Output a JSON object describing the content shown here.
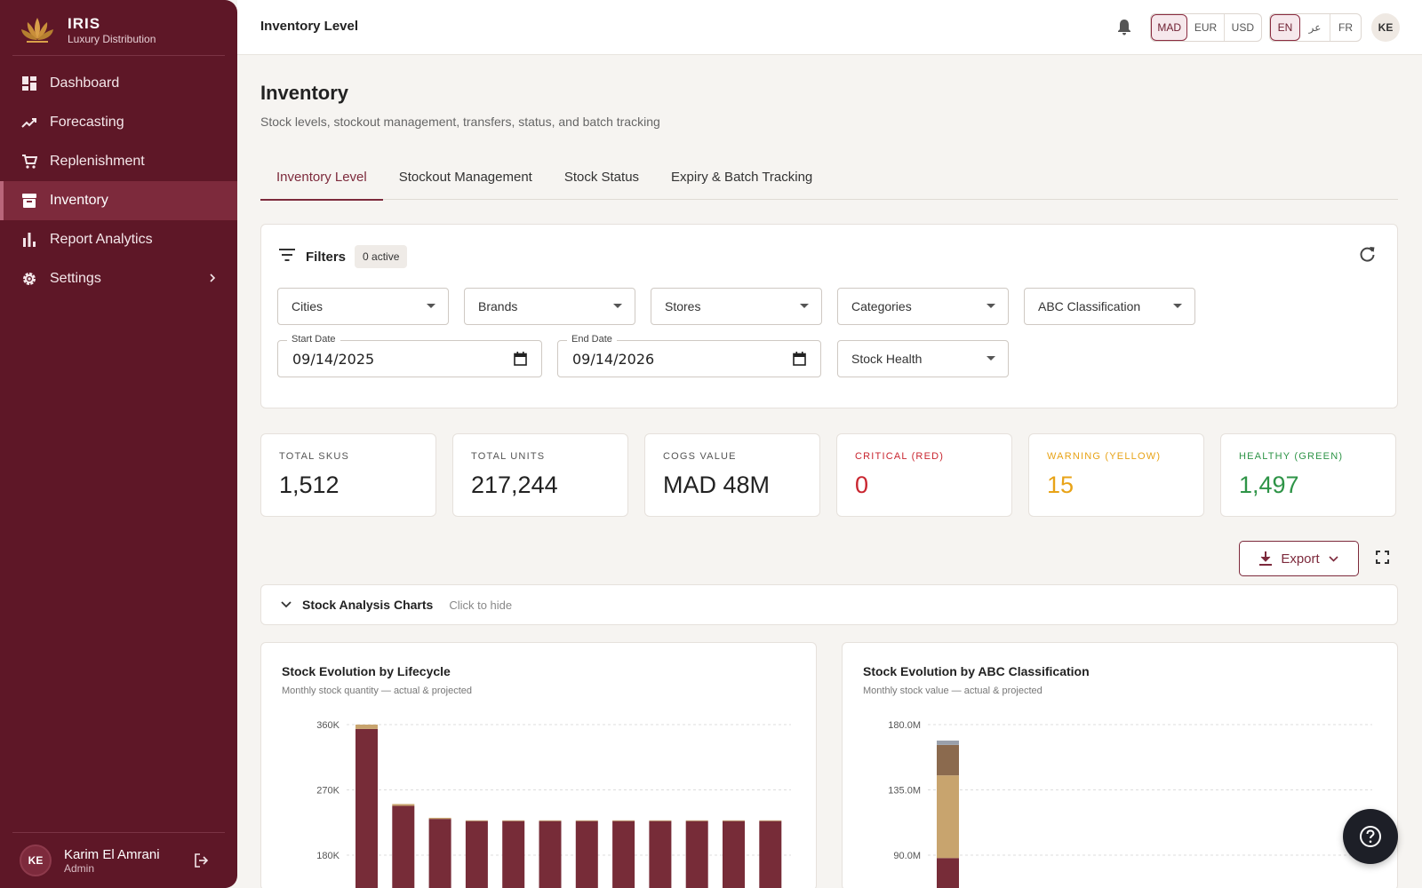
{
  "brand": {
    "name": "IRIS",
    "subtitle": "Luxury Distribution",
    "logo": "lotus-logo"
  },
  "sidebar": {
    "items": [
      {
        "label": "Dashboard",
        "icon": "dashboard-icon",
        "active": false
      },
      {
        "label": "Forecasting",
        "icon": "trending-up-icon",
        "active": false
      },
      {
        "label": "Replenishment",
        "icon": "cart-icon",
        "active": false
      },
      {
        "label": "Inventory",
        "icon": "archive-icon",
        "active": true
      },
      {
        "label": "Report Analytics",
        "icon": "bar-chart-icon",
        "active": false
      },
      {
        "label": "Settings",
        "icon": "gear-icon",
        "active": false,
        "has_submenu": true
      }
    ],
    "user": {
      "initials": "KE",
      "name": "Karim El Amrani",
      "role": "Admin"
    }
  },
  "topbar": {
    "title": "Inventory Level",
    "currencies": [
      "MAD",
      "EUR",
      "USD"
    ],
    "selected_currency": "MAD",
    "languages": [
      "EN",
      "عر",
      "FR"
    ],
    "selected_language": "EN",
    "avatar_initials": "KE"
  },
  "page": {
    "title": "Inventory",
    "subtitle": "Stock levels, stockout management, transfers, status, and batch tracking"
  },
  "tabs": [
    {
      "label": "Inventory Level",
      "active": true
    },
    {
      "label": "Stockout Management",
      "active": false
    },
    {
      "label": "Stock Status",
      "active": false
    },
    {
      "label": "Expiry & Batch Tracking",
      "active": false
    }
  ],
  "filters": {
    "label": "Filters",
    "active_badge": "0 active",
    "selects": [
      "Cities",
      "Brands",
      "Stores",
      "Categories",
      "ABC Classification",
      "Stock Health"
    ],
    "start_date": {
      "label": "Start Date",
      "value": "09/14/2025"
    },
    "end_date": {
      "label": "End Date",
      "value": "09/14/2026"
    }
  },
  "kpis": [
    {
      "label": "TOTAL SKUS",
      "value": "1,512",
      "color": "#222222"
    },
    {
      "label": "TOTAL UNITS",
      "value": "217,244",
      "color": "#222222"
    },
    {
      "label": "COGS VALUE",
      "value": "MAD 48M",
      "color": "#222222"
    },
    {
      "label": "CRITICAL (RED)",
      "value": "0",
      "color": "#c9252f"
    },
    {
      "label": "WARNING (YELLOW)",
      "value": "15",
      "color": "#e8a317"
    },
    {
      "label": "HEALTHY (GREEN)",
      "value": "1,497",
      "color": "#2e9447"
    }
  ],
  "actions": {
    "export_label": "Export"
  },
  "charts_section": {
    "title": "Stock Analysis Charts",
    "hint": "Click to hide"
  },
  "colors": {
    "primary": "#5e1727",
    "accent": "#7d2a3c",
    "bar_main": "#772c38",
    "bar_tan": "#c8a46e",
    "bar_brown": "#8b6a4e",
    "bar_grey": "#9aa0ab"
  },
  "chart_data": [
    {
      "type": "bar",
      "stacked": true,
      "title": "Stock Evolution by Lifecycle",
      "subtitle": "Monthly stock quantity — actual & projected",
      "y_ticks": [
        "360K",
        "270K",
        "180K"
      ],
      "y_tick_values": [
        360000,
        270000,
        180000
      ],
      "ylim_visible": [
        130000,
        370000
      ],
      "grid": true,
      "series": [
        {
          "color": "#772c38",
          "values": [
            354000,
            248000,
            230000,
            227000,
            227000,
            227000,
            227000,
            227000,
            227000,
            227000,
            227000,
            227000
          ]
        },
        {
          "color": "#c8a46e",
          "values": [
            6000,
            2500,
            1500,
            1000,
            1000,
            1000,
            1000,
            1000,
            1000,
            1000,
            1000,
            1000
          ]
        }
      ]
    },
    {
      "type": "bar",
      "stacked": true,
      "title": "Stock Evolution by ABC Classification",
      "subtitle": "Monthly stock value — actual & projected",
      "y_ticks": [
        "180.0M",
        "135.0M",
        "90.0M"
      ],
      "y_tick_values": [
        180000000,
        135000000,
        90000000
      ],
      "ylim_visible": [
        72000000,
        185000000
      ],
      "grid": true,
      "series": [
        {
          "color": "#772c38",
          "values": [
            88000000
          ]
        },
        {
          "color": "#c8a46e",
          "values": [
            57000000
          ]
        },
        {
          "color": "#8b6a4e",
          "values": [
            21000000
          ]
        },
        {
          "color": "#9aa0ab",
          "values": [
            3000000
          ]
        }
      ]
    }
  ]
}
